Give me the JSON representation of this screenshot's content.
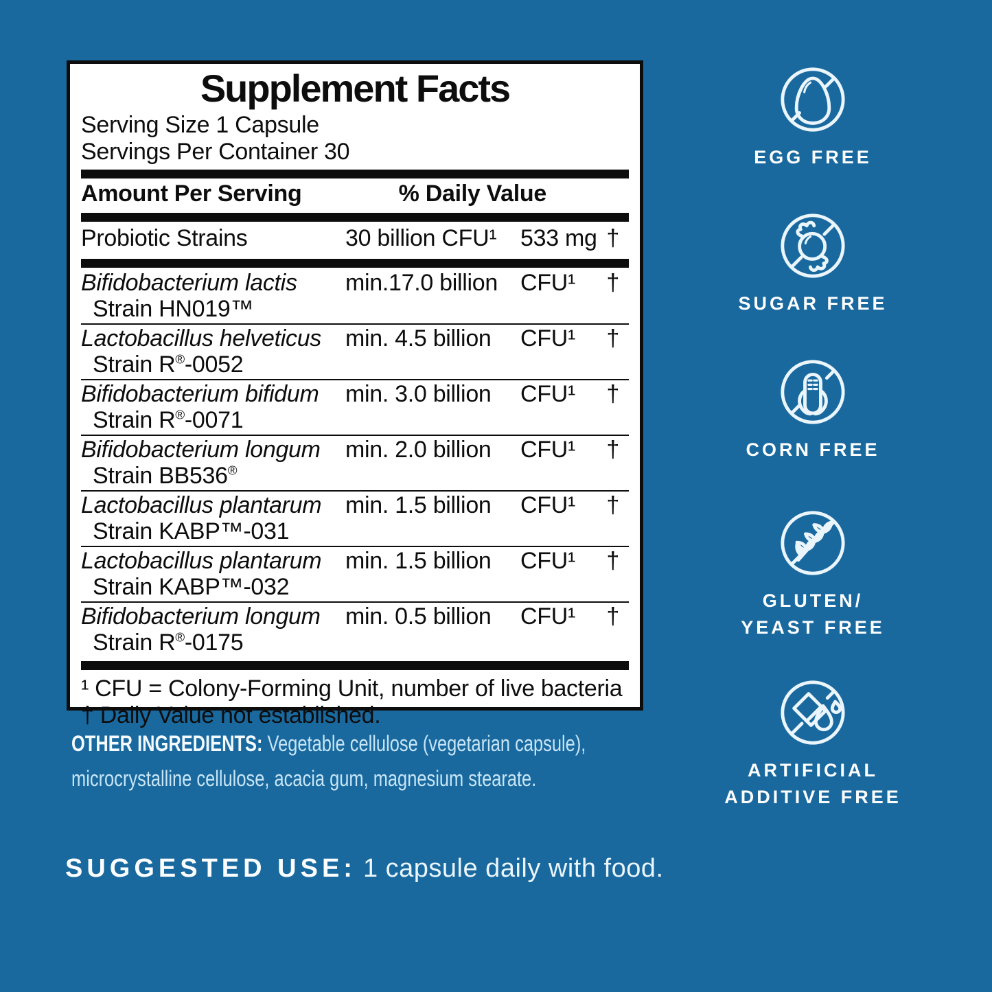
{
  "colors": {
    "background": "#19699F",
    "panel_bg": "#FFFFFF",
    "panel_ink": "#0D0D0D",
    "icon_stroke": "#EAF5FC",
    "light_text": "#C7E5F6",
    "white_text": "#FDFEFF"
  },
  "panel": {
    "title": "Supplement Facts",
    "serving_size": "Serving Size 1 Capsule",
    "servings_per_container": "Servings Per Container 30",
    "header": {
      "amount": "Amount Per Serving",
      "daily_value": "% Daily Value"
    },
    "summary_row": {
      "name": "Probiotic Strains",
      "amount": "30 billion CFU¹",
      "weight": "533 mg",
      "dv": "†"
    },
    "rows": [
      {
        "name": "Bifidobacterium lactis",
        "strain": "Strain HN019™",
        "amount": "min.17.0 billion",
        "unit": "CFU¹",
        "dv": "†"
      },
      {
        "name": "Lactobacillus helveticus",
        "strain": "Strain R®-0052",
        "amount": "min. 4.5 billion",
        "unit": "CFU¹",
        "dv": "†"
      },
      {
        "name": "Bifidobacterium bifidum",
        "strain": "Strain R®-0071",
        "amount": "min. 3.0 billion",
        "unit": "CFU¹",
        "dv": "†"
      },
      {
        "name": "Bifidobacterium longum",
        "strain": "Strain BB536®",
        "amount": "min. 2.0 billion",
        "unit": "CFU¹",
        "dv": "†"
      },
      {
        "name": "Lactobacillus plantarum",
        "strain": "Strain KABP™-031",
        "amount": "min. 1.5 billion",
        "unit": "CFU¹",
        "dv": "†"
      },
      {
        "name": "Lactobacillus plantarum",
        "strain": "Strain KABP™-032",
        "amount": "min. 1.5 billion",
        "unit": "CFU¹",
        "dv": "†"
      },
      {
        "name": "Bifidobacterium longum",
        "strain": "Strain R®-0175",
        "amount": "min. 0.5 billion",
        "unit": "CFU¹",
        "dv": "†"
      }
    ],
    "footnotes": [
      "¹ CFU = Colony-Forming Unit, number of live bacteria",
      "† Daily Value not established."
    ]
  },
  "other_ingredients": {
    "label": "OTHER INGREDIENTS:",
    "text": " Vegetable cellulose (vegetarian capsule), microcrystalline cellulose, acacia gum, magnesium stearate."
  },
  "badges": [
    {
      "icon": "egg-crossed-icon",
      "lines": [
        "EGG FREE"
      ]
    },
    {
      "icon": "candy-crossed-icon",
      "lines": [
        "SUGAR FREE"
      ]
    },
    {
      "icon": "corn-crossed-icon",
      "lines": [
        "CORN FREE"
      ]
    },
    {
      "icon": "wheat-crossed-icon",
      "lines": [
        "GLUTEN/",
        "YEAST FREE"
      ]
    },
    {
      "icon": "additive-crossed-icon",
      "lines": [
        "ARTIFICIAL",
        "ADDITIVE FREE"
      ]
    }
  ],
  "suggested_use": {
    "label": "SUGGESTED USE:",
    "text": "1 capsule daily with food."
  }
}
